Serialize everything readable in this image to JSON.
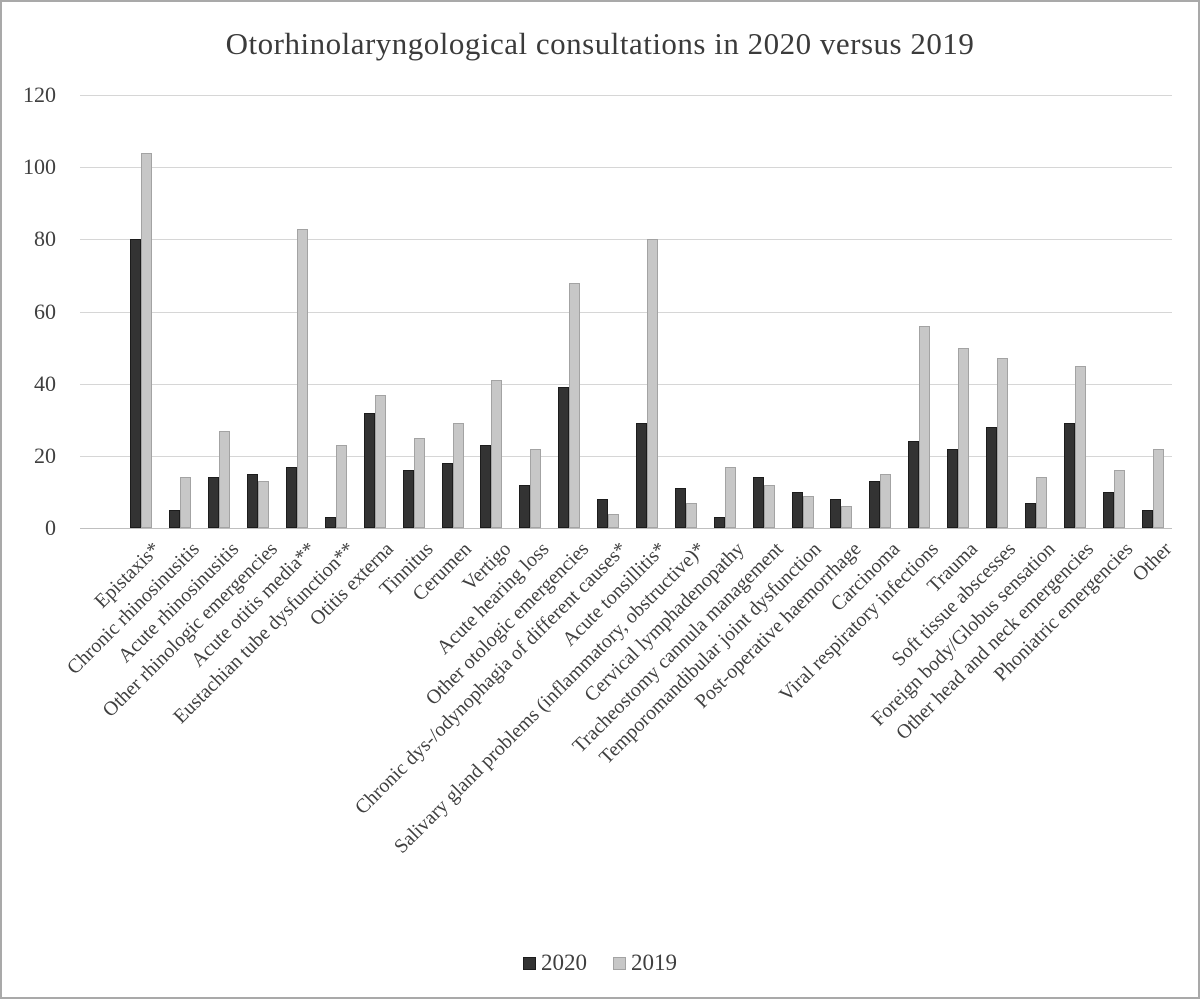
{
  "title": "Otorhinolaryngological consultations in 2020 versus 2019",
  "chart_data": {
    "type": "bar",
    "title": "Otorhinolaryngological consultations in 2020 versus 2019",
    "categories": [
      "Epistaxis*",
      "Chronic rhinosinusitis",
      "Acute rhinosinusitis",
      "Other rhinologic emergencies",
      "Acute otitis media**",
      "Eustachian tube dysfunction**",
      "Otitis externa",
      "Tinnitus",
      "Cerumen",
      "Vertigo",
      "Acute hearing loss",
      "Other otologic emergencies",
      "Chronic dys-/odynophagia of different causes*",
      "Acute tonsillitis*",
      "Salivary gland problems (inflammatory, obstructive)*",
      "Cervical lymphadenopathy",
      "Tracheostomy cannula management",
      "Temporomandibular joint dysfunction",
      "Post-operative haemorrhage",
      "Carcinoma",
      "Viral respiratory infections",
      "Trauma",
      "Soft tissue abscesses",
      "Foreign body/Globus sensation",
      "Other head and neck emergencies",
      "Phoniatric emergencies",
      "Other"
    ],
    "series": [
      {
        "name": "2020",
        "color": "#333333",
        "values": [
          80,
          5,
          14,
          15,
          17,
          3,
          32,
          16,
          18,
          23,
          12,
          39,
          8,
          29,
          11,
          3,
          14,
          10,
          8,
          13,
          24,
          22,
          28,
          7,
          29,
          10,
          5
        ]
      },
      {
        "name": "2019",
        "color": "#c7c7c7",
        "values": [
          104,
          14,
          27,
          13,
          83,
          23,
          37,
          25,
          29,
          41,
          22,
          68,
          4,
          80,
          7,
          17,
          12,
          9,
          6,
          15,
          56,
          50,
          47,
          14,
          45,
          16,
          22
        ]
      }
    ],
    "ylim": [
      0,
      120
    ],
    "ytick_step": 20,
    "yticks": [
      0,
      20,
      40,
      60,
      80,
      100,
      120
    ],
    "grid": true,
    "legend_position": "bottom",
    "legend_labels": [
      "2020",
      "2019"
    ]
  }
}
